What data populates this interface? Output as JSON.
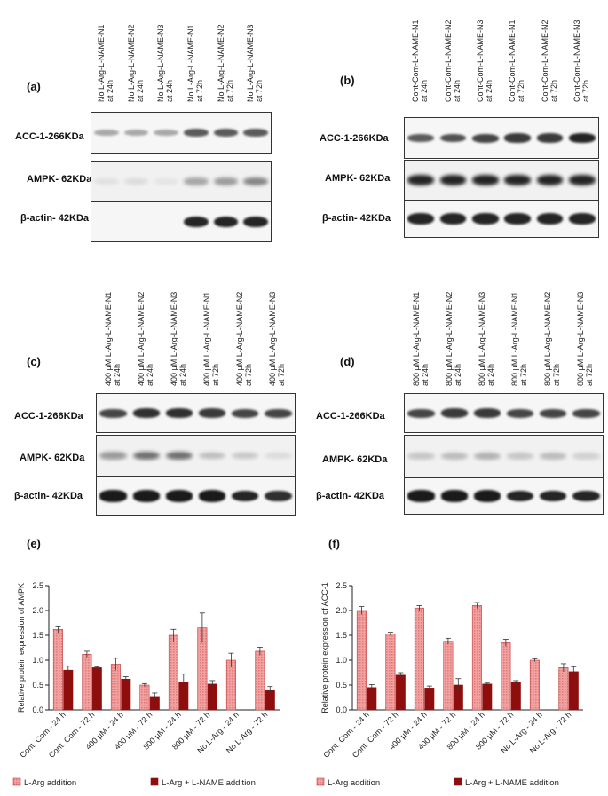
{
  "panels": {
    "a": {
      "letter": "(a)",
      "lanes": [
        "No L-Arg-L-NAME-N1\nat 24h",
        "No L-Arg-L-NAME-N2\nat 24h",
        "No L-Arg-L-NAME-N3\nat 24h",
        "No L-Arg-L-NAME-N1\nat 72h",
        "No L-Arg-L-NAME-N2\nat 72h",
        "No L-Arg-L-NAME-N3\nat 72h"
      ],
      "rows": [
        "ACC-1-266KDa",
        "AMPK- 62KDa",
        "β-actin- 42KDa"
      ]
    },
    "b": {
      "letter": "(b)",
      "lanes": [
        "Cont-Com-L-NAME-N1\nat 24h",
        "Cont-Com-L-NAME-N2\nat 24h",
        "Cont-Com-L-NAME-N3\nat 24h",
        "Cont-Com-L-NAME-N1\nat 72h",
        "Cont-Com-L-NAME-N2\nat 72h",
        "Cont-Com-L-NAME-N3\nat 72h"
      ],
      "rows": [
        "ACC-1-266KDa",
        "AMPK- 62KDa",
        "β-actin- 42KDa"
      ]
    },
    "c": {
      "letter": "(c)",
      "lanes": [
        "400 μM L-Arg-L-NAME-N1\nat 24h",
        "400 μM L-Arg-L-NAME-N2\nat 24h",
        "400 μM L-Arg-L-NAME-N3\nat 24h",
        "400 μM L-Arg-L-NAME-N1\nat 72h",
        "400 μM L-Arg-L-NAME-N2\nat 72h",
        "400 μM L-Arg-L-NAME-N3\nat 72h"
      ],
      "rows": [
        "ACC-1-266KDa",
        "AMPK- 62KDa",
        "β-actin- 42KDa"
      ]
    },
    "d": {
      "letter": "(d)",
      "lanes": [
        "800 μM L-Arg-L-NAME-N1\nat 24h",
        "800 μM L-Arg-L-NAME-N2\nat 24h",
        "800 μM L-Arg-L-NAME-N3\nat 24h",
        "800 μM L-Arg-L-NAME-N1\nat 72h",
        "800 μM L-Arg-L-NAME-N2\nat 72h",
        "800 μM L-Arg-L-NAME-N3\nat 72h"
      ],
      "rows": [
        "ACC-1-266KDa",
        "AMPK- 62KDa",
        "β-actin- 42KDa"
      ]
    }
  },
  "band_intensity": {
    "a": [
      [
        0.35,
        0.35,
        0.35,
        0.7,
        0.7,
        0.7
      ],
      [
        0.08,
        0.1,
        0.06,
        0.35,
        0.4,
        0.5
      ],
      [
        0.0,
        0.0,
        0.0,
        0.95,
        0.95,
        0.95
      ]
    ],
    "b": [
      [
        0.7,
        0.75,
        0.8,
        0.85,
        0.85,
        0.95
      ],
      [
        0.95,
        0.95,
        0.95,
        0.95,
        0.95,
        0.95
      ],
      [
        0.95,
        0.95,
        0.95,
        0.95,
        0.95,
        0.95
      ]
    ],
    "c": [
      [
        0.8,
        0.9,
        0.9,
        0.85,
        0.8,
        0.8
      ],
      [
        0.4,
        0.6,
        0.6,
        0.25,
        0.2,
        0.1
      ],
      [
        1.0,
        1.0,
        1.0,
        1.0,
        0.95,
        0.9
      ]
    ],
    "d": [
      [
        0.8,
        0.85,
        0.85,
        0.8,
        0.8,
        0.8
      ],
      [
        0.2,
        0.25,
        0.3,
        0.2,
        0.25,
        0.15
      ],
      [
        1.0,
        1.0,
        1.0,
        0.95,
        0.95,
        0.95
      ]
    ]
  },
  "chart_data": [
    {
      "type": "bar",
      "letter": "(e)",
      "ylabel": "Relative protein expression of AMPK",
      "ylim": [
        0,
        2.5
      ],
      "yticks": [
        "0.0",
        "0.5",
        "1.0",
        "1.5",
        "2.0",
        "2.5"
      ],
      "categories": [
        "Cont. Com - 24 h",
        "Cont. Com - 72 h",
        "400 μM - 24 h",
        "400 μM - 72 h",
        "800 μM - 24 h",
        "800 μM - 72 h",
        "No L-Arg - 24 h",
        "No L-Arg - 72 h"
      ],
      "series": [
        {
          "name": "L-Arg addition",
          "values": [
            1.62,
            1.12,
            0.92,
            0.5,
            1.5,
            1.65,
            1.0,
            1.18
          ],
          "errors": [
            0.07,
            0.06,
            0.12,
            0.03,
            0.12,
            0.3,
            0.14,
            0.08
          ]
        },
        {
          "name": "L-Arg + L-NAME addition",
          "values": [
            0.8,
            0.85,
            0.62,
            0.27,
            0.55,
            0.52,
            null,
            0.4
          ],
          "errors": [
            0.08,
            0.02,
            0.05,
            0.07,
            0.17,
            0.07,
            null,
            0.07
          ]
        }
      ],
      "legend": "bottom"
    },
    {
      "type": "bar",
      "letter": "(f)",
      "ylabel": "Relative protein expression of ACC-1",
      "ylim": [
        0,
        2.5
      ],
      "yticks": [
        "0.0",
        "0.5",
        "1.0",
        "1.5",
        "2.0",
        "2.5"
      ],
      "categories": [
        "Cont. Com - 24 h",
        "Cont. Com - 72 h",
        "400 μM - 24 h",
        "400 μM - 72 h",
        "800 μM - 24 h",
        "800 μM - 72 h",
        "No L-Arg - 24 h",
        "No L-Arg - 72 h"
      ],
      "series": [
        {
          "name": "L-Arg addition",
          "values": [
            2.0,
            1.53,
            2.05,
            1.38,
            2.1,
            1.35,
            1.0,
            0.85
          ],
          "errors": [
            0.08,
            0.03,
            0.05,
            0.06,
            0.06,
            0.07,
            0.03,
            0.08
          ]
        },
        {
          "name": "L-Arg + L-NAME addition",
          "values": [
            0.45,
            0.7,
            0.44,
            0.5,
            0.52,
            0.55,
            null,
            0.77
          ],
          "errors": [
            0.06,
            0.05,
            0.04,
            0.13,
            0.02,
            0.04,
            null,
            0.1
          ]
        }
      ],
      "legend": "bottom"
    }
  ],
  "colors": {
    "series1_fill": "#f2a0a0",
    "series1_stroke": "#c23b3b",
    "series2_fill": "#8e0e0e",
    "band": "#1a1a1a"
  }
}
